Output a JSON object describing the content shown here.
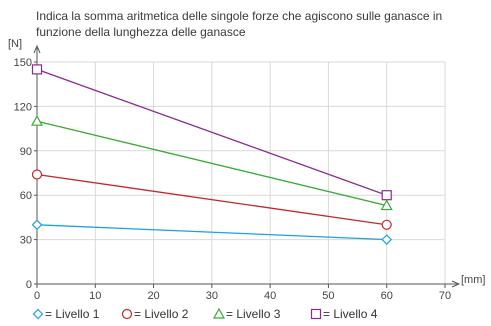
{
  "chart_data": {
    "type": "line",
    "title": "Indica la somma aritmetica delle singole forze che agiscono sulle ganasce in funzione della lunghezza delle ganasce",
    "ylabel": "[N]",
    "xlabel": "[mm]",
    "xlim": [
      0,
      70
    ],
    "ylim": [
      0,
      150
    ],
    "x_ticks": [
      "0",
      "10",
      "20",
      "30",
      "40",
      "50",
      "60",
      "70"
    ],
    "y_ticks": [
      "0",
      "30",
      "60",
      "90",
      "120",
      "150"
    ],
    "grid": true,
    "legend_position": "bottom",
    "series": [
      {
        "name": "= Livello 1",
        "marker": "diamond",
        "color": "#1e9fe0",
        "points": [
          [
            0,
            40
          ],
          [
            60,
            30
          ]
        ]
      },
      {
        "name": "= Livello 2",
        "marker": "circle",
        "color": "#c0282d",
        "points": [
          [
            0,
            74
          ],
          [
            60,
            40
          ]
        ]
      },
      {
        "name": "= Livello 3",
        "marker": "triangle",
        "color": "#3aaa35",
        "points": [
          [
            0,
            110
          ],
          [
            60,
            53
          ]
        ]
      },
      {
        "name": "= Livello 4",
        "marker": "square",
        "color": "#8b2a8c",
        "points": [
          [
            0,
            145
          ],
          [
            60,
            60
          ]
        ]
      }
    ]
  }
}
